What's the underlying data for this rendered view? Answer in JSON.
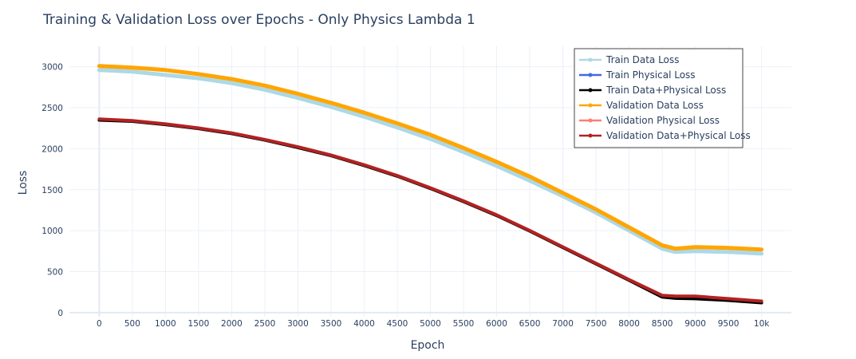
{
  "chart_data": {
    "type": "line",
    "title": "Training & Validation Loss over Epochs  - Only Physics Lambda 1",
    "xlabel": "Epoch",
    "ylabel": "Loss",
    "xlim": [
      -450,
      10450
    ],
    "ylim": [
      -50,
      3250
    ],
    "x_ticks": [
      0,
      500,
      1000,
      1500,
      2000,
      2500,
      3000,
      3500,
      4000,
      4500,
      5000,
      5500,
      6000,
      6500,
      7000,
      7500,
      8000,
      8500,
      9000,
      9500,
      10000
    ],
    "x_tick_labels": [
      "0",
      "500",
      "1000",
      "1500",
      "2000",
      "2500",
      "3000",
      "3500",
      "4000",
      "4500",
      "5000",
      "5500",
      "6000",
      "6500",
      "7000",
      "7500",
      "8000",
      "8500",
      "9000",
      "9500",
      "10k"
    ],
    "y_ticks": [
      0,
      500,
      1000,
      1500,
      2000,
      2500,
      3000
    ],
    "y_tick_labels": [
      "0",
      "500",
      "1000",
      "1500",
      "2000",
      "2500",
      "3000"
    ],
    "grid": true,
    "legend_position": "top-right",
    "x": [
      0,
      500,
      1000,
      1500,
      2000,
      2500,
      3000,
      3500,
      4000,
      4500,
      5000,
      5500,
      6000,
      6500,
      7000,
      7500,
      8000,
      8500,
      8700,
      9000,
      9500,
      10000
    ],
    "series": [
      {
        "name": "Train Data Loss",
        "color": "#add8e6",
        "width": 5,
        "values": [
          2960,
          2940,
          2900,
          2860,
          2800,
          2720,
          2620,
          2510,
          2390,
          2260,
          2120,
          1960,
          1790,
          1610,
          1420,
          1220,
          1000,
          780,
          740,
          750,
          740,
          720
        ]
      },
      {
        "name": "Train Physical Loss",
        "color": "#4169e1",
        "width": 2,
        "values": [
          2360,
          2340,
          2300,
          2250,
          2190,
          2110,
          2020,
          1920,
          1800,
          1670,
          1520,
          1360,
          1190,
          1000,
          800,
          600,
          400,
          200,
          190,
          190,
          160,
          130
        ]
      },
      {
        "name": "Train Data+Physical Loss",
        "color": "#000000",
        "width": 4,
        "values": [
          2350,
          2335,
          2295,
          2245,
          2185,
          2105,
          2015,
          1915,
          1795,
          1665,
          1515,
          1355,
          1185,
          995,
          795,
          595,
          395,
          190,
          175,
          170,
          150,
          120
        ]
      },
      {
        "name": "Validation Data Loss",
        "color": "#ffa500",
        "width": 5,
        "values": [
          3010,
          2990,
          2960,
          2910,
          2850,
          2770,
          2670,
          2560,
          2440,
          2310,
          2170,
          2010,
          1840,
          1660,
          1460,
          1260,
          1040,
          820,
          780,
          800,
          790,
          770
        ]
      },
      {
        "name": "Validation Physical Loss",
        "color": "#fa8072",
        "width": 2,
        "values": [
          2365,
          2345,
          2305,
          2255,
          2195,
          2115,
          2025,
          1925,
          1805,
          1675,
          1525,
          1365,
          1195,
          1005,
          805,
          605,
          405,
          215,
          205,
          205,
          175,
          145
        ]
      },
      {
        "name": "Validation Data+Physical Loss",
        "color": "#b22222",
        "width": 4,
        "values": [
          2362,
          2342,
          2302,
          2252,
          2192,
          2112,
          2022,
          1922,
          1802,
          1672,
          1522,
          1362,
          1192,
          1002,
          802,
          602,
          402,
          210,
          200,
          200,
          170,
          140
        ]
      }
    ]
  }
}
